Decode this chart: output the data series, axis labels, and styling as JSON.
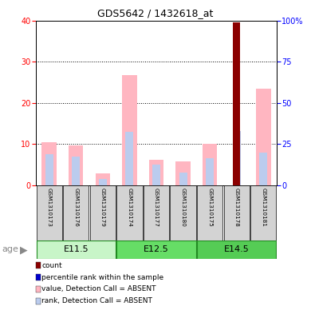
{
  "title": "GDS5642 / 1432618_at",
  "samples": [
    "GSM1310173",
    "GSM1310176",
    "GSM1310179",
    "GSM1310174",
    "GSM1310177",
    "GSM1310180",
    "GSM1310175",
    "GSM1310178",
    "GSM1310181"
  ],
  "groups": [
    {
      "label": "E11.5",
      "indices": [
        0,
        1,
        2
      ]
    },
    {
      "label": "E12.5",
      "indices": [
        3,
        4,
        5
      ]
    },
    {
      "label": "E14.5",
      "indices": [
        6,
        7,
        8
      ]
    }
  ],
  "pink_value": [
    10.5,
    9.6,
    2.8,
    26.7,
    6.2,
    5.7,
    10.1,
    0.0,
    23.5
  ],
  "blue_rank": [
    7.5,
    7.0,
    1.5,
    13.0,
    5.0,
    3.0,
    6.5,
    13.2,
    8.0
  ],
  "red_count": [
    0,
    0,
    0,
    0,
    0,
    0,
    0,
    39.5,
    0
  ],
  "ylim_left": [
    0,
    40
  ],
  "ylim_right": [
    0,
    100
  ],
  "yticks_left": [
    0,
    10,
    20,
    30,
    40
  ],
  "ytick_labels_right": [
    "0",
    "25",
    "50",
    "75",
    "100%"
  ],
  "yticks_right": [
    0,
    25,
    50,
    75,
    100
  ],
  "legend": [
    {
      "label": "count",
      "color": "#8B0000"
    },
    {
      "label": "percentile rank within the sample",
      "color": "#0000CD"
    },
    {
      "label": "value, Detection Call = ABSENT",
      "color": "#FFB6C1"
    },
    {
      "label": "rank, Detection Call = ABSENT",
      "color": "#BBCCEE"
    }
  ],
  "bar_width": 0.55,
  "rank_bar_width": 0.3,
  "light_green1": "#C8F5C8",
  "light_green2": "#66DD66",
  "light_green3": "#55CC55"
}
